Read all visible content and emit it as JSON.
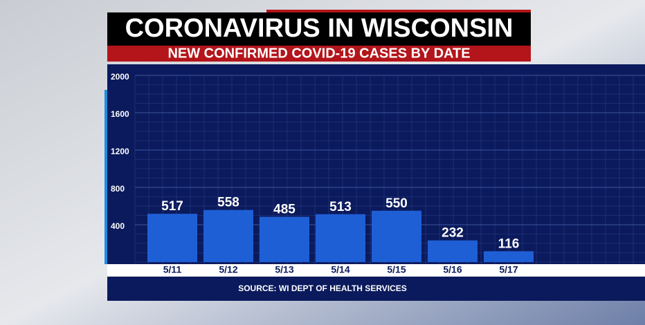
{
  "chart_data": {
    "type": "bar",
    "title": "CORONAVIRUS IN WISCONSIN",
    "subtitle": "NEW CONFIRMED COVID-19 CASES BY DATE",
    "source": "SOURCE: WI DEPT OF HEALTH SERVICES",
    "categories": [
      "5/11",
      "5/12",
      "5/13",
      "5/14",
      "5/15",
      "5/16",
      "5/17"
    ],
    "values": [
      517,
      558,
      485,
      513,
      550,
      232,
      116
    ],
    "color": "#1f5fd6",
    "ylim": [
      0,
      2000
    ],
    "yticks": [
      400,
      800,
      1200,
      1600,
      2000
    ],
    "grid": true
  }
}
